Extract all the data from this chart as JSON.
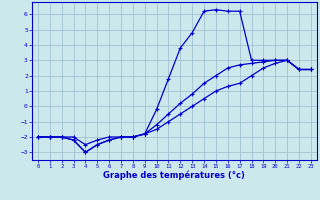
{
  "title": "Graphe des températures (°c)",
  "bg_color": "#cce8ec",
  "line_color": "#0000cc",
  "grid_color": "#99bbcc",
  "xlim": [
    -0.5,
    23.5
  ],
  "ylim": [
    -3.5,
    6.8
  ],
  "yticks": [
    -3,
    -2,
    -1,
    0,
    1,
    2,
    3,
    4,
    5,
    6
  ],
  "xticks": [
    0,
    1,
    2,
    3,
    4,
    5,
    6,
    7,
    8,
    9,
    10,
    11,
    12,
    13,
    14,
    15,
    16,
    17,
    18,
    19,
    20,
    21,
    22,
    23
  ],
  "series1_x": [
    0,
    1,
    2,
    3,
    4,
    5,
    6,
    7,
    8,
    9,
    10,
    11,
    12,
    13,
    14,
    15,
    16,
    17,
    18,
    19,
    20,
    21,
    22,
    23
  ],
  "series1_y": [
    -2.0,
    -2.0,
    -2.0,
    -2.2,
    -3.0,
    -2.5,
    -2.2,
    -2.0,
    -2.0,
    -1.8,
    -1.5,
    -1.0,
    -0.5,
    0.0,
    0.5,
    1.0,
    1.3,
    1.5,
    2.0,
    2.5,
    2.8,
    3.0,
    2.4,
    2.4
  ],
  "series2_x": [
    0,
    1,
    2,
    3,
    4,
    5,
    6,
    7,
    8,
    9,
    10,
    11,
    12,
    13,
    14,
    15,
    16,
    17,
    18,
    19,
    20,
    21,
    22,
    23
  ],
  "series2_y": [
    -2.0,
    -2.0,
    -2.0,
    -2.2,
    -3.0,
    -2.5,
    -2.2,
    -2.0,
    -2.0,
    -1.8,
    -0.2,
    1.8,
    3.8,
    4.8,
    6.2,
    6.3,
    6.2,
    6.2,
    3.0,
    3.0,
    3.0,
    3.0,
    2.4,
    2.4
  ],
  "series3_x": [
    0,
    1,
    2,
    3,
    4,
    5,
    6,
    7,
    8,
    9,
    10,
    11,
    12,
    13,
    14,
    15,
    16,
    17,
    18,
    19,
    20,
    21,
    22,
    23
  ],
  "series3_y": [
    -2.0,
    -2.0,
    -2.0,
    -2.0,
    -2.5,
    -2.2,
    -2.0,
    -2.0,
    -2.0,
    -1.8,
    -1.2,
    -0.5,
    0.2,
    0.8,
    1.5,
    2.0,
    2.5,
    2.7,
    2.8,
    2.9,
    3.0,
    3.0,
    2.4,
    2.4
  ]
}
